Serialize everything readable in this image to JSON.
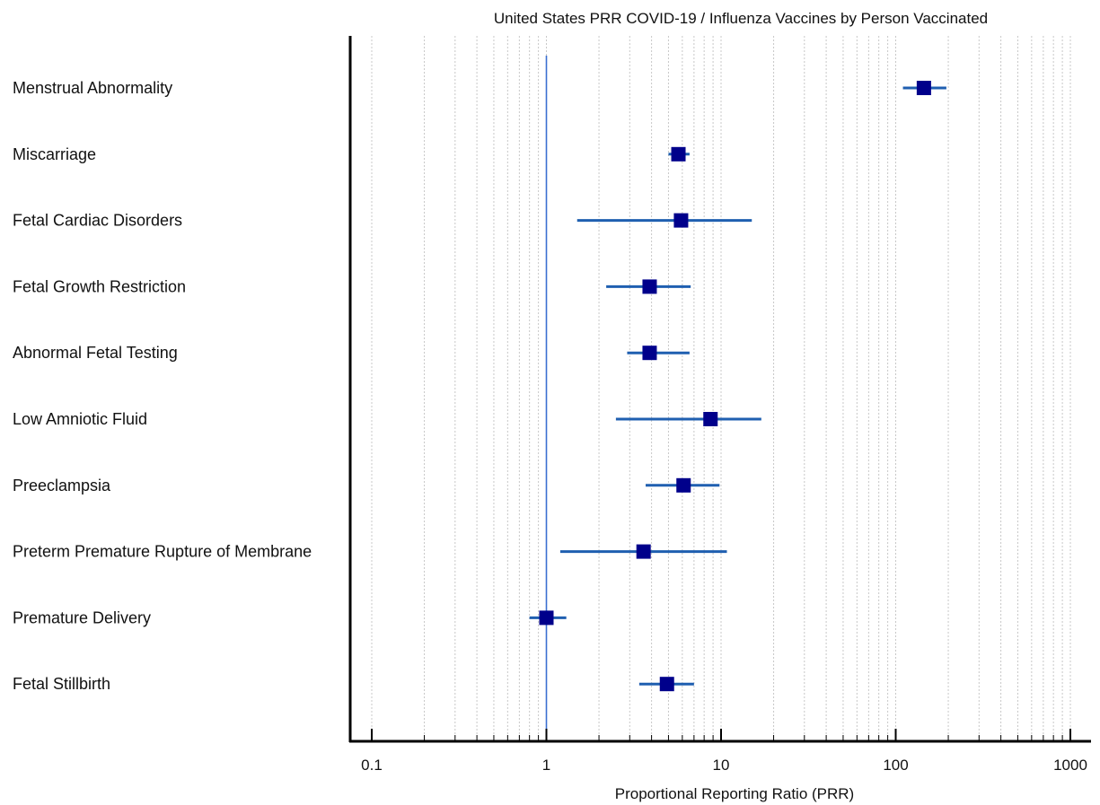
{
  "chart_data": {
    "type": "forest",
    "title": "United States PRR COVID-19 / Influenza Vaccines by Person Vaccinated",
    "xlabel": "Proportional Reporting Ratio (PRR)",
    "xscale": "log",
    "xlim": [
      0.1,
      1000
    ],
    "xticks": [
      0.1,
      1,
      10,
      100,
      1000
    ],
    "xtick_labels": [
      "0.1",
      "1",
      "10",
      "100",
      "1000"
    ],
    "reference_line": 1,
    "grid": true,
    "colors": {
      "marker": "#00008b",
      "ci": "#1f5fb0",
      "reference": "#3b6fd1",
      "grid": "#c8c8c8"
    },
    "categories": [
      "Menstrual Abnormality",
      "Miscarriage",
      "Fetal Cardiac Disorders",
      "Fetal Growth Restriction",
      "Abnormal Fetal Testing",
      "Low Amniotic Fluid",
      "Preeclampsia",
      "Preterm Premature Rupture of Membrane",
      "Premature Delivery",
      "Fetal Stillbirth"
    ],
    "estimates": [
      145,
      5.7,
      5.9,
      3.9,
      3.9,
      8.7,
      6.1,
      3.6,
      1.0,
      4.9
    ],
    "ci_low": [
      110,
      5.0,
      1.5,
      2.2,
      2.9,
      2.5,
      3.7,
      1.2,
      0.8,
      3.4
    ],
    "ci_high": [
      195,
      6.6,
      15.0,
      6.7,
      6.6,
      17.0,
      9.8,
      10.8,
      1.3,
      7.0
    ]
  }
}
